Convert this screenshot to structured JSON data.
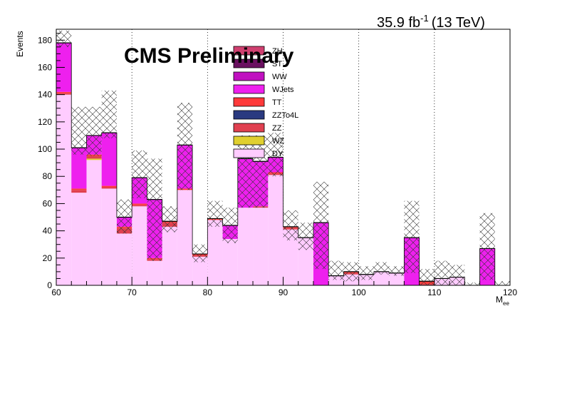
{
  "header": {
    "lumi": "35.9 fb",
    "lumi_exp": "-1",
    "energy": "(13 TeV)"
  },
  "chart_data": {
    "type": "bar",
    "stacked": true,
    "title": "CMS Preliminary",
    "xlabel": "M",
    "xlabel_sub": "ee",
    "ylabel": "Events",
    "xlim": [
      60,
      120
    ],
    "ylim": [
      0,
      188
    ],
    "xticks": [
      60,
      70,
      80,
      90,
      100,
      110,
      120
    ],
    "yticks": [
      0,
      20,
      40,
      60,
      80,
      100,
      120,
      140,
      160,
      180
    ],
    "grid": "vertical dotted at major x ticks",
    "legend_position": "top-center",
    "bin_edges": [
      60,
      62,
      64,
      66,
      68,
      70,
      72,
      74,
      76,
      78,
      80,
      82,
      84,
      86,
      88,
      90,
      92,
      94,
      96,
      98,
      100,
      102,
      104,
      106,
      108,
      110,
      112,
      114,
      116,
      118,
      120
    ],
    "series": [
      {
        "name": "DY",
        "color": "#ffccff",
        "values": [
          140,
          68,
          92,
          71,
          38,
          58,
          18,
          43,
          70,
          21,
          48,
          34,
          57,
          57,
          81,
          41,
          35,
          0,
          7,
          8,
          8,
          10,
          9,
          0,
          0,
          5,
          6,
          0,
          0,
          0
        ]
      },
      {
        "name": "WZ",
        "color": "#e0d030",
        "values": [
          0,
          0,
          1,
          0,
          0,
          0,
          0,
          0,
          0,
          0,
          0,
          0,
          0,
          0,
          0,
          0,
          0,
          0,
          0,
          0,
          0,
          0,
          0,
          0,
          0,
          0,
          0,
          0,
          0,
          0
        ]
      },
      {
        "name": "ZZ",
        "color": "#e04050",
        "values": [
          1,
          2,
          2,
          1,
          4,
          1,
          1,
          3,
          0,
          1,
          0,
          0,
          0,
          1,
          1,
          1,
          0,
          0,
          0,
          1,
          0,
          0,
          0,
          0,
          1,
          0,
          0,
          0,
          0,
          0
        ]
      },
      {
        "name": "ZZTo4L",
        "color": "#2a3a80",
        "values": [
          0,
          0,
          0,
          0,
          0,
          0,
          0,
          0,
          0,
          0,
          0,
          0,
          0,
          0,
          0,
          0,
          0,
          0,
          0,
          0,
          0,
          0,
          0,
          0,
          0,
          0,
          0,
          0,
          0,
          0
        ]
      },
      {
        "name": "TT",
        "color": "#ff3a3a",
        "values": [
          1,
          1,
          1,
          1,
          1,
          1,
          1,
          1,
          1,
          1,
          1,
          0,
          0,
          0,
          1,
          1,
          0,
          0,
          0,
          1,
          0,
          0,
          0,
          0,
          2,
          0,
          0,
          0,
          0,
          0
        ]
      },
      {
        "name": "WJets",
        "color": "#ee20ee",
        "values": [
          36,
          30,
          14,
          39,
          7,
          19,
          43,
          0,
          32,
          0,
          0,
          10,
          36,
          33,
          11,
          0,
          0,
          46,
          0,
          0,
          0,
          0,
          0,
          35,
          0,
          0,
          0,
          0,
          27,
          0
        ]
      },
      {
        "name": "WW",
        "color": "#c010c0",
        "values": [
          0,
          0,
          0,
          0,
          0,
          0,
          0,
          0,
          0,
          0,
          0,
          0,
          0,
          0,
          0,
          0,
          0,
          0,
          0,
          0,
          0,
          0,
          0,
          0,
          0,
          0,
          0,
          0,
          0,
          0
        ]
      },
      {
        "name": "ST",
        "color": "#6a1060",
        "values": [
          0,
          0,
          0,
          0,
          0,
          0,
          0,
          0,
          0,
          0,
          0,
          0,
          0,
          0,
          0,
          0,
          0,
          0,
          0,
          0,
          0,
          0,
          0,
          0,
          0,
          0,
          0,
          0,
          0,
          0
        ]
      },
      {
        "name": "ZH",
        "color": "#d04070",
        "values": [
          0,
          0,
          0,
          0,
          0,
          0,
          0,
          0,
          0,
          0,
          0,
          0,
          0,
          0,
          0,
          0,
          0,
          0,
          0,
          0,
          0,
          0,
          0,
          0,
          0,
          0,
          0,
          0,
          0,
          0
        ]
      }
    ],
    "uncertainty_band": {
      "style": "cross-hatch",
      "upper": [
        187,
        131,
        131,
        143,
        63,
        99,
        93,
        58,
        134,
        30,
        62,
        57,
        110,
        110,
        112,
        55,
        46,
        76,
        18,
        17,
        14,
        17,
        14,
        62,
        12,
        18,
        15,
        2,
        53,
        3
      ],
      "lower": [
        175,
        96,
        95,
        108,
        38,
        64,
        18,
        39,
        70,
        17,
        43,
        31,
        57,
        57,
        80,
        33,
        26,
        12,
        4,
        3,
        4,
        8,
        7,
        9,
        0,
        0,
        0,
        0,
        4,
        0
      ]
    },
    "legend_order": [
      "ZH",
      "ST",
      "WW",
      "WJets",
      "TT",
      "ZZTo4L",
      "ZZ",
      "WZ",
      "DY"
    ]
  }
}
